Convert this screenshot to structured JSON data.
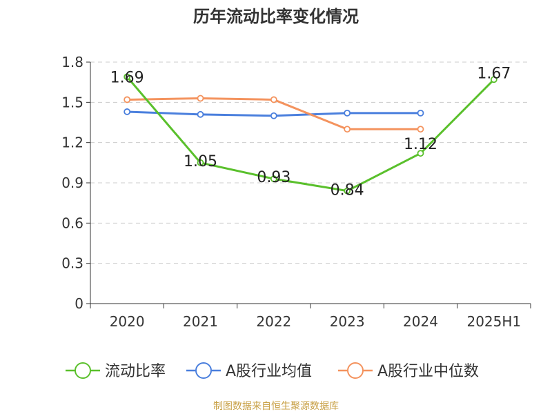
{
  "chart_data": {
    "type": "line",
    "title": "历年流动比率变化情况",
    "categories": [
      "2020",
      "2021",
      "2022",
      "2023",
      "2024",
      "2025H1"
    ],
    "y_ticks": [
      "0",
      "0.3",
      "0.6",
      "0.9",
      "1.2",
      "1.5",
      "1.8"
    ],
    "ylim": [
      0,
      1.8
    ],
    "grid": "horizontal dashed",
    "legend_position": "bottom",
    "series": [
      {
        "name": "流动比率",
        "color": "#5ac02c",
        "values": [
          1.69,
          1.05,
          0.93,
          0.84,
          1.12,
          1.67
        ],
        "labels": [
          "1.69",
          "1.05",
          "0.93",
          "0.84",
          "1.12",
          "1.67"
        ]
      },
      {
        "name": "A股行业均值",
        "color": "#4a7fdd",
        "values": [
          1.43,
          1.41,
          1.4,
          1.42,
          1.42,
          null
        ]
      },
      {
        "name": "A股行业中位数",
        "color": "#f4935e",
        "values": [
          1.52,
          1.53,
          1.52,
          1.3,
          1.3,
          null
        ]
      }
    ]
  },
  "source_note": "制图数据来自恒生聚源数据库"
}
